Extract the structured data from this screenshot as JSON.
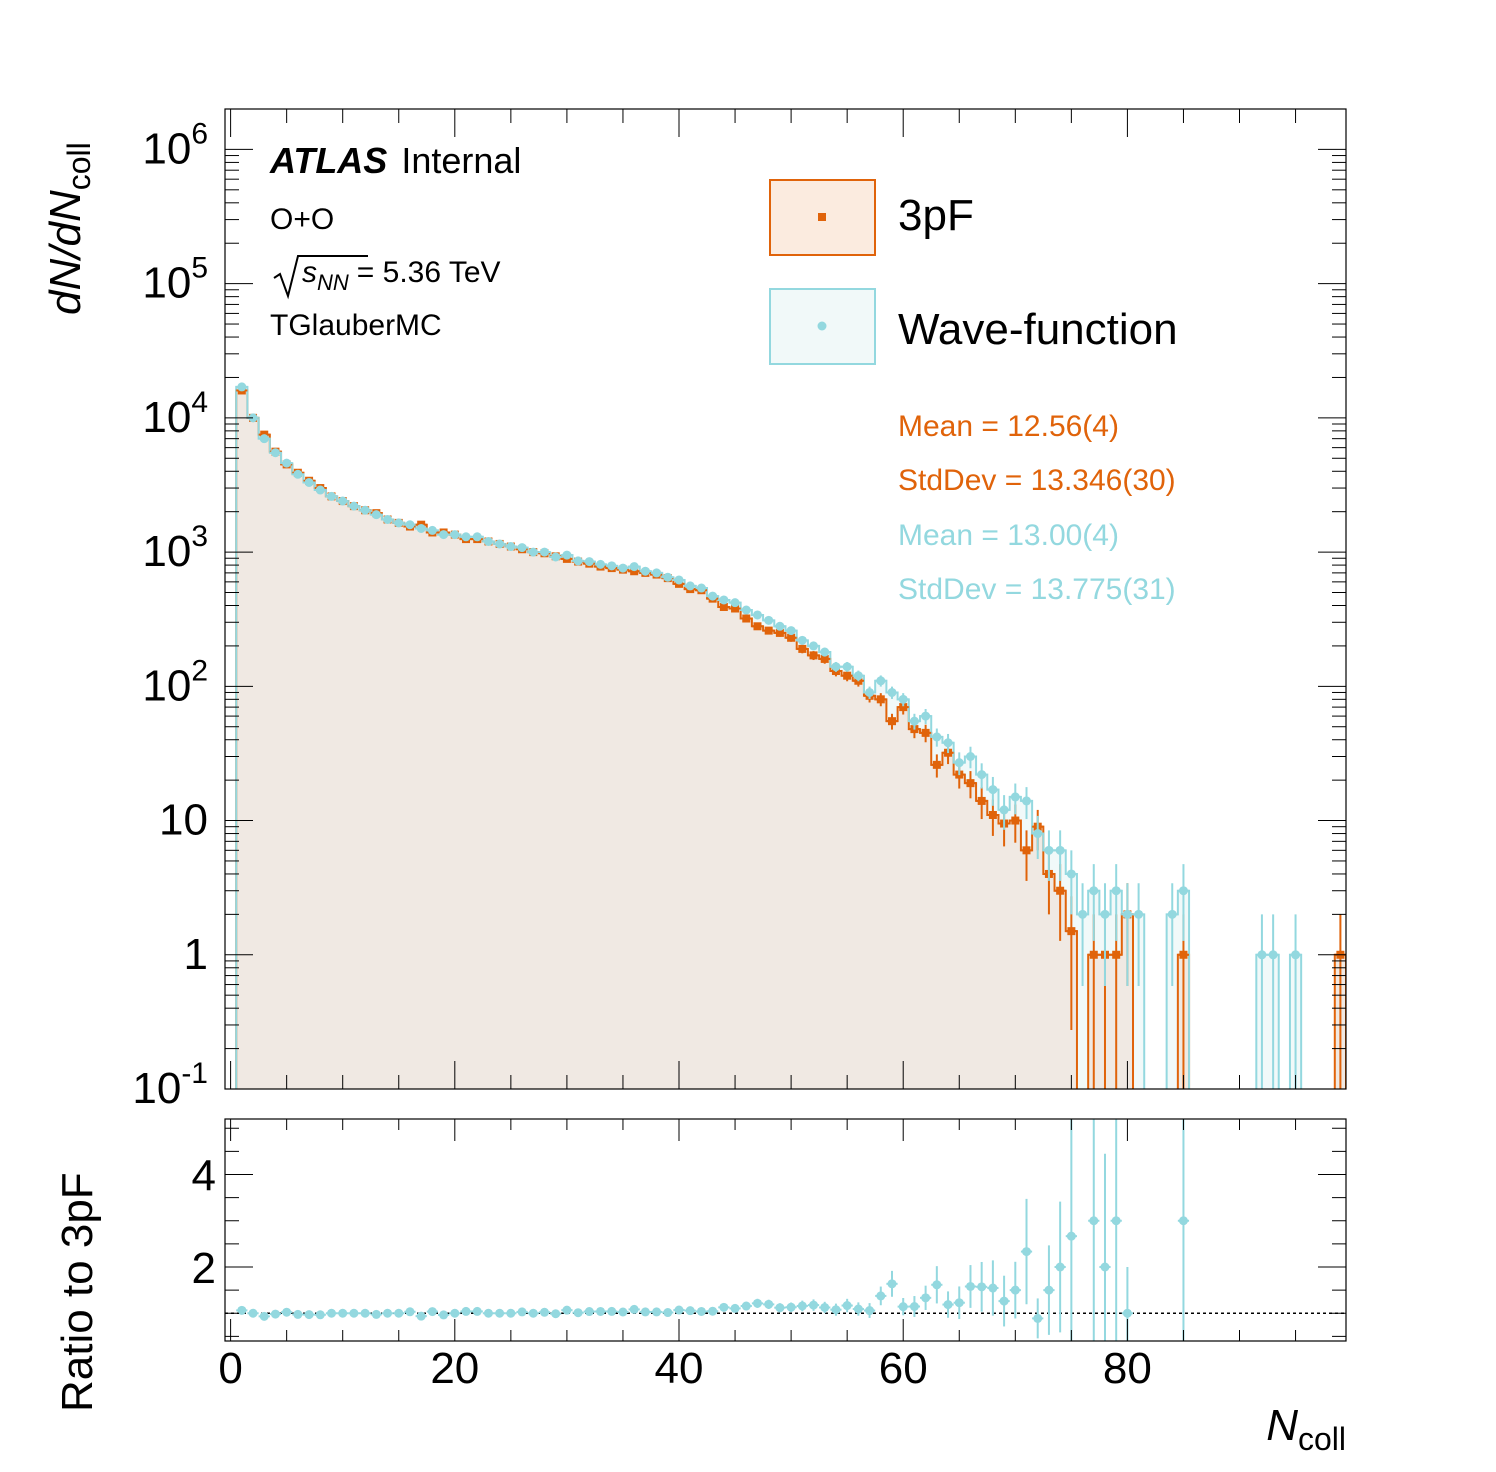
{
  "chart_data": {
    "type": "histogram",
    "header": {
      "experiment": "ATLAS",
      "status": "Internal",
      "system": "O+O",
      "energy_sqrt": "s",
      "energy_sub": "NN",
      "energy_value": "= 5.36 TeV",
      "generator": "TGlauberMC"
    },
    "x_axis": {
      "label_main": "N",
      "label_sub": "coll",
      "range": [
        -0.5,
        99.5
      ],
      "ticks": [
        0,
        20,
        40,
        60,
        80
      ],
      "tick_labels": [
        "0",
        "20",
        "40",
        "60",
        "80"
      ]
    },
    "top_panel": {
      "y_label": {
        "part1": "dN/dN",
        "sub": "coll"
      },
      "y_scale": "log",
      "y_range": [
        0.1,
        2000000
      ],
      "y_tick_labels": [
        {
          "value": 1000000,
          "base": "10",
          "exp": "6"
        },
        {
          "value": 100000,
          "base": "10",
          "exp": "5"
        },
        {
          "value": 10000,
          "base": "10",
          "exp": "4"
        },
        {
          "value": 1000,
          "base": "10",
          "exp": "3"
        },
        {
          "value": 100,
          "base": "10",
          "exp": "2"
        },
        {
          "value": 10,
          "base": "10",
          "exp": ""
        },
        {
          "value": 1,
          "base": "1",
          "exp": ""
        },
        {
          "value": 0.1,
          "base": "10",
          "exp": "-1"
        }
      ]
    },
    "bottom_panel": {
      "y_label": "Ratio to 3pF",
      "y_range": [
        0.4,
        5.2
      ],
      "y_ticks": [
        2,
        4
      ],
      "y_tick_labels": [
        "2",
        "4"
      ],
      "reference_line": 1
    },
    "series": [
      {
        "name": "3pF",
        "line_color": "#e0630a",
        "fill_color": "#fbebdf",
        "marker": "square",
        "stats": [
          "Mean = 12.56(4)",
          "StdDev = 13.346(30)"
        ],
        "values": [
          0,
          16000,
          10000,
          7500,
          5600,
          4500,
          3900,
          3400,
          3000,
          2600,
          2400,
          2200,
          2050,
          1950,
          1750,
          1650,
          1550,
          1600,
          1400,
          1400,
          1350,
          1250,
          1250,
          1200,
          1150,
          1100,
          1050,
          1000,
          980,
          930,
          890,
          850,
          820,
          780,
          760,
          740,
          720,
          700,
          680,
          640,
          580,
          530,
          520,
          450,
          390,
          380,
          320,
          280,
          260,
          250,
          230,
          190,
          170,
          160,
          130,
          120,
          110,
          85,
          80,
          55,
          70,
          48,
          45,
          26,
          32,
          22,
          19,
          14,
          11,
          9.5,
          10,
          6,
          9,
          4,
          3,
          1.5,
          0,
          1,
          1,
          1,
          2,
          0,
          0,
          0,
          0,
          1,
          0,
          0,
          0,
          0,
          0,
          0,
          0,
          0,
          0,
          0,
          0,
          0,
          0,
          1
        ]
      },
      {
        "name": "Wave-function",
        "line_color": "#93d8df",
        "fill_color": "#f1f9f9",
        "marker": "circle",
        "stats": [
          "Mean = 13.00(4)",
          "StdDev = 13.775(31)"
        ],
        "values": [
          0,
          17000,
          10000,
          7000,
          5500,
          4600,
          3800,
          3300,
          2900,
          2600,
          2400,
          2200,
          2050,
          1900,
          1750,
          1650,
          1600,
          1500,
          1450,
          1350,
          1350,
          1300,
          1300,
          1200,
          1150,
          1100,
          1080,
          1000,
          1000,
          920,
          950,
          860,
          850,
          810,
          790,
          760,
          780,
          720,
          700,
          650,
          620,
          560,
          540,
          470,
          440,
          420,
          370,
          340,
          310,
          280,
          260,
          220,
          200,
          180,
          140,
          140,
          120,
          90,
          110,
          90,
          80,
          55,
          60,
          42,
          38,
          27,
          30,
          22,
          17,
          12,
          15,
          14,
          8,
          6,
          6,
          4,
          2,
          3,
          2,
          3,
          2,
          2,
          0,
          0,
          2,
          3,
          0,
          0,
          0,
          0,
          0,
          0,
          1,
          1,
          0,
          1,
          0,
          0,
          0,
          0
        ]
      }
    ]
  }
}
